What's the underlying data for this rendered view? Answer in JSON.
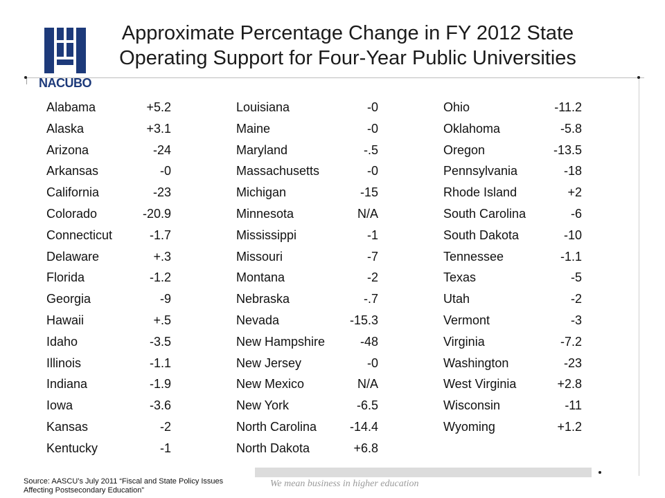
{
  "logo": {
    "text": "NACUBO",
    "icon": "nacubo-logo-icon",
    "color": "#1d3a7a"
  },
  "title": {
    "line1": "Approximate Percentage Change in FY 2012 State",
    "line2": "Operating Support for Four-Year Public Universities"
  },
  "columns": [
    [
      {
        "state": "Alabama",
        "value": "+5.2"
      },
      {
        "state": "Alaska",
        "value": "+3.1"
      },
      {
        "state": "Arizona",
        "value": "-24"
      },
      {
        "state": "Arkansas",
        "value": "-0"
      },
      {
        "state": "California",
        "value": "-23"
      },
      {
        "state": "Colorado",
        "value": "-20.9"
      },
      {
        "state": "Connecticut",
        "value": "-1.7"
      },
      {
        "state": "Delaware",
        "value": "+.3"
      },
      {
        "state": "Florida",
        "value": "-1.2"
      },
      {
        "state": "Georgia",
        "value": "-9"
      },
      {
        "state": "Hawaii",
        "value": "+.5"
      },
      {
        "state": "Idaho",
        "value": "-3.5"
      },
      {
        "state": "Illinois",
        "value": "-1.1"
      },
      {
        "state": "Indiana",
        "value": "-1.9"
      },
      {
        "state": "Iowa",
        "value": "-3.6"
      },
      {
        "state": "Kansas",
        "value": "-2"
      },
      {
        "state": "Kentucky",
        "value": "-1"
      }
    ],
    [
      {
        "state": "Louisiana",
        "value": "-0"
      },
      {
        "state": "Maine",
        "value": "-0"
      },
      {
        "state": "Maryland",
        "value": "-.5"
      },
      {
        "state": "Massachusetts",
        "value": "-0"
      },
      {
        "state": "Michigan",
        "value": "-15"
      },
      {
        "state": "Minnesota",
        "value": "N/A"
      },
      {
        "state": "Mississippi",
        "value": "-1"
      },
      {
        "state": "Missouri",
        "value": "-7"
      },
      {
        "state": "Montana",
        "value": "-2"
      },
      {
        "state": "Nebraska",
        "value": "-.7"
      },
      {
        "state": "Nevada",
        "value": "-15.3"
      },
      {
        "state": "New Hampshire",
        "value": "-48"
      },
      {
        "state": "New Jersey",
        "value": "-0"
      },
      {
        "state": "New Mexico",
        "value": "N/A"
      },
      {
        "state": "New York",
        "value": "-6.5"
      },
      {
        "state": "North Carolina",
        "value": "-14.4"
      },
      {
        "state": "North Dakota",
        "value": "+6.8"
      }
    ],
    [
      {
        "state": "Ohio",
        "value": "-11.2"
      },
      {
        "state": "Oklahoma",
        "value": "-5.8"
      },
      {
        "state": "Oregon",
        "value": "-13.5"
      },
      {
        "state": "Pennsylvania",
        "value": "-18"
      },
      {
        "state": "Rhode Island",
        "value": "+2"
      },
      {
        "state": "South Carolina",
        "value": "-6"
      },
      {
        "state": "South Dakota",
        "value": "-10"
      },
      {
        "state": "Tennessee",
        "value": "-1.1"
      },
      {
        "state": "Texas",
        "value": "-5"
      },
      {
        "state": "Utah",
        "value": "-2"
      },
      {
        "state": "Vermont",
        "value": "-3"
      },
      {
        "state": "Virginia",
        "value": "-7.2"
      },
      {
        "state": "Washington",
        "value": "-23"
      },
      {
        "state": "West Virginia",
        "value": "+2.8"
      },
      {
        "state": "Wisconsin",
        "value": "-11"
      },
      {
        "state": "Wyoming",
        "value": "+1.2"
      }
    ]
  ],
  "footer": {
    "source_line1": "Source: AASCU’s July 2011 “Fiscal and State Policy Issues",
    "source_line2": "Affecting Postsecondary Education”",
    "tagline": "We mean business in higher education"
  }
}
